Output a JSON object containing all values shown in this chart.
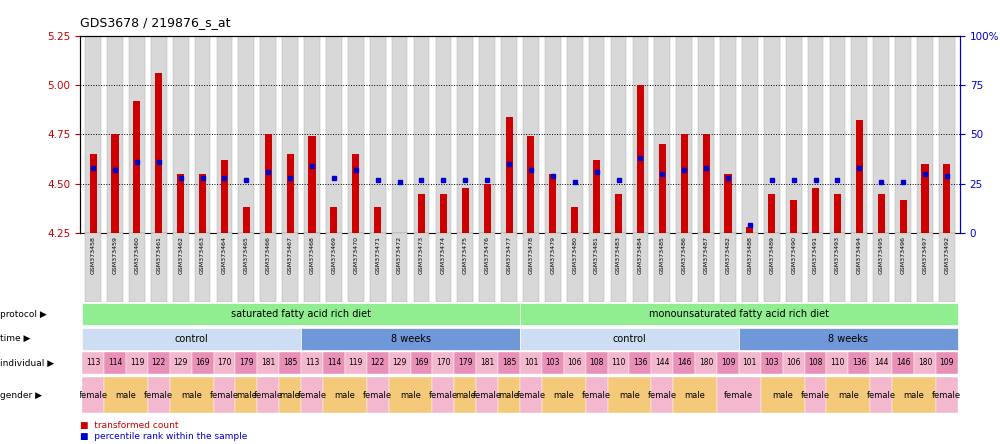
{
  "title": "GDS3678 / 219876_s_at",
  "samples": [
    "GSM373458",
    "GSM373459",
    "GSM373460",
    "GSM373461",
    "GSM373462",
    "GSM373463",
    "GSM373464",
    "GSM373465",
    "GSM373466",
    "GSM373467",
    "GSM373468",
    "GSM373469",
    "GSM373470",
    "GSM373471",
    "GSM373472",
    "GSM373473",
    "GSM373474",
    "GSM373475",
    "GSM373476",
    "GSM373477",
    "GSM373478",
    "GSM373479",
    "GSM373480",
    "GSM373481",
    "GSM373483",
    "GSM373484",
    "GSM373485",
    "GSM373486",
    "GSM373487",
    "GSM373482",
    "GSM373488",
    "GSM373489",
    "GSM373490",
    "GSM373491",
    "GSM373493",
    "GSM373494",
    "GSM373495",
    "GSM373496",
    "GSM373497",
    "GSM373492"
  ],
  "red_values": [
    4.65,
    4.75,
    4.92,
    5.06,
    4.55,
    4.55,
    4.62,
    4.38,
    4.75,
    4.65,
    4.74,
    4.38,
    4.65,
    4.38,
    4.25,
    4.45,
    4.45,
    4.48,
    4.5,
    4.84,
    4.74,
    4.55,
    4.38,
    4.62,
    4.45,
    5.0,
    4.7,
    4.75,
    4.75,
    4.55,
    4.28,
    4.45,
    4.42,
    4.48,
    4.45,
    4.82,
    4.45,
    4.42,
    4.6,
    4.6
  ],
  "blue_pct": [
    33,
    32,
    36,
    36,
    28,
    28,
    28,
    27,
    31,
    28,
    34,
    28,
    32,
    27,
    26,
    27,
    27,
    27,
    27,
    35,
    32,
    29,
    26,
    31,
    27,
    38,
    30,
    32,
    33,
    28,
    4,
    27,
    27,
    27,
    27,
    33,
    26,
    26,
    30,
    29
  ],
  "ylim_left": [
    4.25,
    5.25
  ],
  "ylim_right": [
    0,
    100
  ],
  "yticks_left": [
    4.25,
    4.5,
    4.75,
    5.0,
    5.25
  ],
  "yticks_right": [
    0,
    25,
    50,
    75,
    100
  ],
  "bar_color": "#cc0000",
  "dot_color": "#0000cc",
  "col_bg_color": "#d8d8d8",
  "col_bg_edge": "#aaaaaa",
  "protocol_data": [
    {
      "span": [
        0,
        19
      ],
      "label": "saturated fatty acid rich diet",
      "color": "#90ee90"
    },
    {
      "span": [
        20,
        39
      ],
      "label": "monounsaturated fatty acid rich diet",
      "color": "#90ee90"
    }
  ],
  "time_data": [
    {
      "span": [
        0,
        9
      ],
      "label": "control",
      "color": "#ccddf4"
    },
    {
      "span": [
        10,
        19
      ],
      "label": "8 weeks",
      "color": "#7097d8"
    },
    {
      "span": [
        20,
        29
      ],
      "label": "control",
      "color": "#ccddf4"
    },
    {
      "span": [
        30,
        39
      ],
      "label": "8 weeks",
      "color": "#7097d8"
    }
  ],
  "individual_labels": [
    "113",
    "114",
    "119",
    "122",
    "129",
    "169",
    "170",
    "179",
    "181",
    "185",
    "113",
    "114",
    "119",
    "122",
    "129",
    "169",
    "170",
    "179",
    "181",
    "185",
    "101",
    "103",
    "106",
    "108",
    "110",
    "136",
    "144",
    "146",
    "180",
    "109",
    "101",
    "103",
    "106",
    "108",
    "110",
    "136",
    "144",
    "146",
    "180",
    "109"
  ],
  "ind_color_odd": "#f4b8ce",
  "ind_color_even": "#e890b8",
  "gender_labels": [
    "female",
    "male",
    "male",
    "female",
    "male",
    "male",
    "female",
    "male",
    "female",
    "male",
    "female",
    "male",
    "male",
    "female",
    "male",
    "male",
    "female",
    "male",
    "female",
    "male",
    "female",
    "male",
    "male",
    "female",
    "male",
    "male",
    "female",
    "male",
    "male",
    "female",
    "female",
    "male",
    "male",
    "female",
    "male",
    "male",
    "female",
    "male",
    "male",
    "female"
  ],
  "gender_male_color": "#f5c97a",
  "gender_female_color": "#f4b8ce",
  "row_names": [
    "protocol",
    "time",
    "individual",
    "gender"
  ],
  "left_color": "#cc0000",
  "right_color": "#0000cc"
}
